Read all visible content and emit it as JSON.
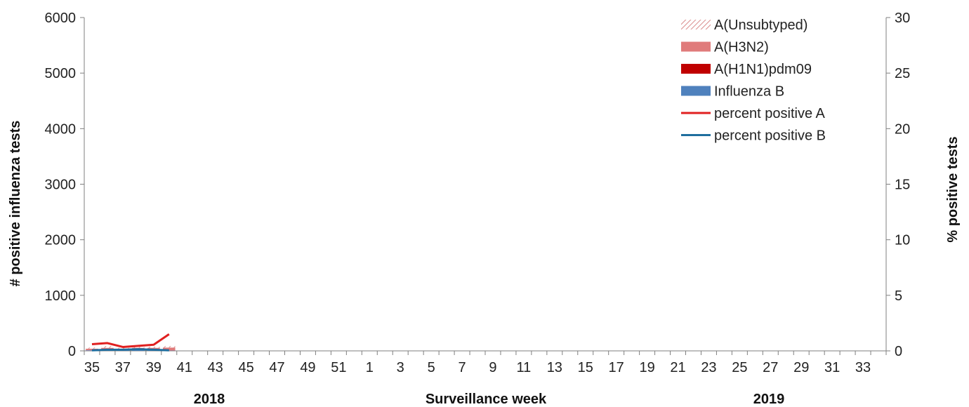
{
  "chart_data": {
    "type": "bar",
    "ylabel_left": "# positive influenza tests",
    "ylabel_right": "% positive tests",
    "xlabel": "Surveillance week",
    "season_labels": [
      "2018",
      "2019"
    ],
    "ylim_left": [
      0,
      6000
    ],
    "ylim_right": [
      0,
      30
    ],
    "yticks_left": [
      "0",
      "1000",
      "2000",
      "3000",
      "4000",
      "5000",
      "6000"
    ],
    "yticks_right": [
      "0",
      "5",
      "10",
      "15",
      "20",
      "25",
      "30"
    ],
    "x_weeks": [
      35,
      36,
      37,
      38,
      39,
      40,
      41,
      42,
      43,
      44,
      45,
      46,
      47,
      48,
      49,
      50,
      51,
      52,
      1,
      2,
      3,
      4,
      5,
      6,
      7,
      8,
      9,
      10,
      11,
      12,
      13,
      14,
      15,
      16,
      17,
      18,
      19,
      20,
      21,
      22,
      23,
      24,
      25,
      26,
      27,
      28,
      29,
      30,
      31,
      32,
      33,
      34
    ],
    "x_tick_labels": [
      "35",
      "37",
      "39",
      "41",
      "43",
      "45",
      "47",
      "49",
      "51",
      "1",
      "3",
      "5",
      "7",
      "9",
      "11",
      "13",
      "15",
      "17",
      "19",
      "21",
      "23",
      "25",
      "27",
      "29",
      "31",
      "33"
    ],
    "grid": false,
    "legend_position": "top-right",
    "series": [
      {
        "name": "A(Unsubtyped)",
        "kind": "bar",
        "axis": "left",
        "pattern": "hatch",
        "color": "#e6a0a0",
        "values": [
          20,
          30,
          15,
          15,
          20,
          25
        ]
      },
      {
        "name": "A(H3N2)",
        "kind": "bar",
        "axis": "left",
        "color": "#e07b7b",
        "values": [
          30,
          40,
          20,
          25,
          30,
          55
        ]
      },
      {
        "name": "A(H1N1)pdm09",
        "kind": "bar",
        "axis": "left",
        "color": "#c00000",
        "values": [
          0,
          0,
          0,
          0,
          0,
          0
        ]
      },
      {
        "name": "Influenza B",
        "kind": "bar",
        "axis": "left",
        "color": "#4f81bd",
        "values": [
          10,
          15,
          20,
          30,
          25,
          5
        ]
      },
      {
        "name": "percent positive A",
        "kind": "line",
        "axis": "right",
        "color": "#e02020",
        "values": [
          0.6,
          0.7,
          0.35,
          0.45,
          0.55,
          1.5
        ]
      },
      {
        "name": "percent positive B",
        "kind": "line",
        "axis": "right",
        "color": "#1f6e9e",
        "values": [
          0.05,
          0.1,
          0.1,
          0.15,
          0.1,
          0.05
        ]
      }
    ]
  }
}
